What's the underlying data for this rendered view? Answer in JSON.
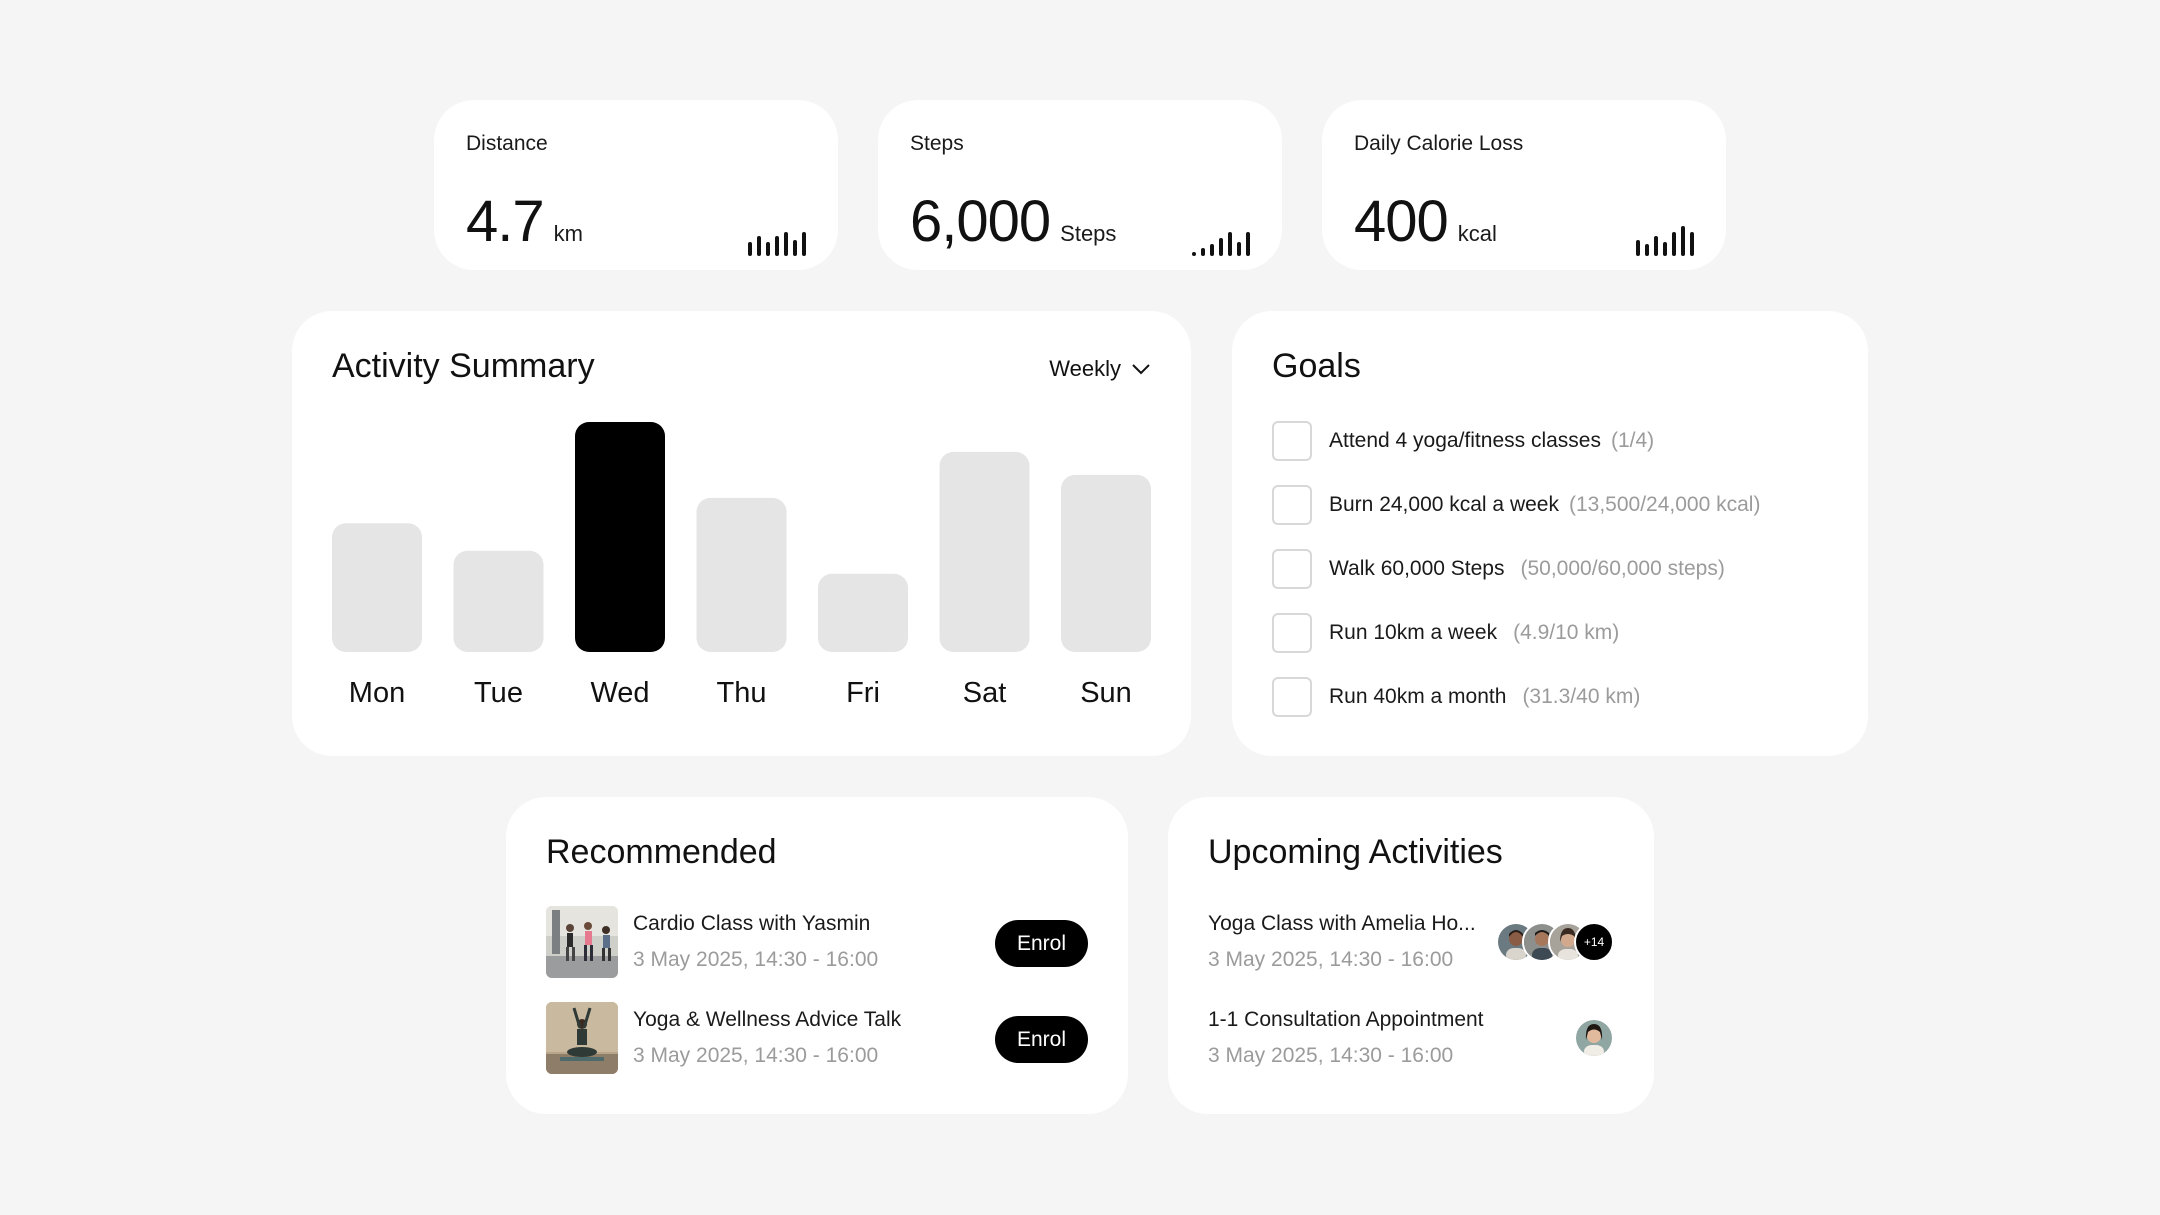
{
  "stats": [
    {
      "title": "Distance",
      "value": "4.7",
      "unit": "km",
      "bars": [
        14,
        20,
        14,
        20,
        24,
        16,
        24
      ]
    },
    {
      "title": "Steps",
      "value": "6,000",
      "unit": "Steps",
      "bars": [
        4,
        8,
        12,
        18,
        24,
        14,
        24
      ]
    },
    {
      "title": "Daily Calorie Loss",
      "value": "400",
      "unit": "kcal",
      "bars": [
        16,
        12,
        20,
        14,
        24,
        30,
        24
      ]
    }
  ],
  "activity": {
    "title": "Activity Summary",
    "period": "Weekly"
  },
  "chart_data": {
    "type": "bar",
    "categories": [
      "Mon",
      "Tue",
      "Wed",
      "Thu",
      "Fri",
      "Sat",
      "Sun"
    ],
    "values": [
      0.56,
      0.44,
      1.0,
      0.67,
      0.34,
      0.87,
      0.77
    ],
    "highlight": "Wed",
    "colors": {
      "bar": "#e5e5e5",
      "highlight": "#000000"
    },
    "title": "",
    "xlabel": "",
    "ylabel": ""
  },
  "goals": {
    "title": "Goals",
    "items": [
      {
        "text": "Attend 4 yoga/fitness classes",
        "progress": "(1/4)"
      },
      {
        "text": "Burn 24,000 kcal a week",
        "progress": "(13,500/24,000 kcal)"
      },
      {
        "text": "Walk 60,000 Steps",
        "progress": "(50,000/60,000 steps)"
      },
      {
        "text": "Run 10km a week",
        "progress": "(4.9/10 km)"
      },
      {
        "text": "Run 40km a month",
        "progress": "(31.3/40 km)"
      }
    ]
  },
  "recommended": {
    "title": "Recommended",
    "items": [
      {
        "title": "Cardio Class with Yasmin",
        "time": "3 May 2025, 14:30 - 16:00",
        "button": "Enrol"
      },
      {
        "title": "Yoga & Wellness Advice Talk",
        "time": "3 May 2025, 14:30 - 16:00",
        "button": "Enrol"
      }
    ]
  },
  "upcoming": {
    "title": "Upcoming Activities",
    "items": [
      {
        "title": "Yoga Class with Amelia Ho...",
        "time": "3 May 2025, 14:30 - 16:00",
        "more": "+14"
      },
      {
        "title": "1-1 Consultation Appointment",
        "time": "3 May 2025, 14:30 - 16:00"
      }
    ]
  }
}
